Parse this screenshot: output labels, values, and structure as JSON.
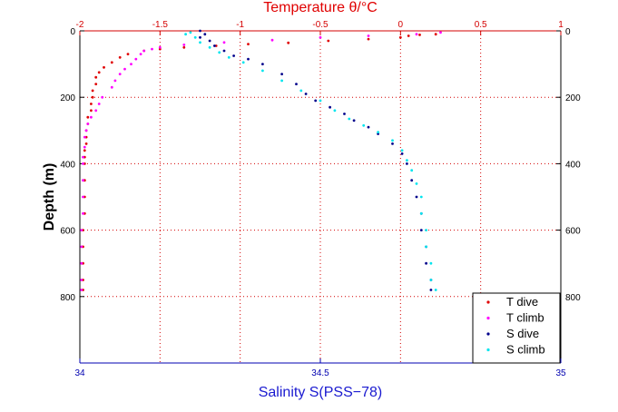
{
  "chart_data": {
    "type": "scatter",
    "title": "Temperature θ/°C",
    "xlabel": "Salinity S(PSS−78)",
    "ylabel": "Depth (m)",
    "x_top": {
      "label": "Temperature θ/°C",
      "lim": [
        -2,
        1
      ],
      "ticks": [
        "-2",
        "-1.5",
        "-1",
        "-0.5",
        "0",
        "0.5",
        "1"
      ],
      "tick_values": [
        -2,
        -1.5,
        -1,
        -0.5,
        0,
        0.5,
        1
      ]
    },
    "x_bottom": {
      "label": "Salinity S(PSS−78)",
      "lim": [
        34,
        35
      ],
      "ticks": [
        "34",
        "34.5",
        "35"
      ],
      "tick_values": [
        34,
        34.5,
        35
      ]
    },
    "y": {
      "label": "Depth (m)",
      "lim": [
        0,
        1000
      ],
      "reversed": true,
      "ticks": [
        "0",
        "200",
        "400",
        "600",
        "800"
      ],
      "tick_values": [
        0,
        200,
        400,
        600,
        800
      ]
    },
    "grid": true,
    "legend_position": "bottom-right",
    "series": [
      {
        "name": "T dive",
        "axis": "top",
        "color": "#e00000",
        "points": [
          [
            0.22,
            10
          ],
          [
            0.12,
            12
          ],
          [
            0.05,
            15
          ],
          [
            0.0,
            20
          ],
          [
            -0.2,
            25
          ],
          [
            -0.45,
            30
          ],
          [
            -0.7,
            36
          ],
          [
            -0.95,
            40
          ],
          [
            -1.15,
            45
          ],
          [
            -1.35,
            50
          ],
          [
            -1.5,
            55
          ],
          [
            -1.6,
            60
          ],
          [
            -1.7,
            70
          ],
          [
            -1.75,
            80
          ],
          [
            -1.8,
            95
          ],
          [
            -1.85,
            110
          ],
          [
            -1.88,
            125
          ],
          [
            -1.9,
            140
          ],
          [
            -1.9,
            160
          ],
          [
            -1.92,
            180
          ],
          [
            -1.92,
            200
          ],
          [
            -1.93,
            220
          ],
          [
            -1.93,
            240
          ],
          [
            -1.95,
            260
          ],
          [
            -1.95,
            280
          ],
          [
            -1.96,
            300
          ],
          [
            -1.96,
            320
          ],
          [
            -1.96,
            340
          ],
          [
            -1.97,
            360
          ],
          [
            -1.97,
            380
          ],
          [
            -1.97,
            400
          ],
          [
            -1.97,
            450
          ],
          [
            -1.97,
            500
          ],
          [
            -1.97,
            550
          ],
          [
            -1.98,
            600
          ],
          [
            -1.98,
            650
          ],
          [
            -1.98,
            700
          ],
          [
            -1.98,
            750
          ],
          [
            -1.98,
            780
          ]
        ]
      },
      {
        "name": "T climb",
        "axis": "top",
        "color": "#ff00ff",
        "points": [
          [
            0.25,
            5
          ],
          [
            0.1,
            10
          ],
          [
            -0.2,
            15
          ],
          [
            -0.5,
            20
          ],
          [
            -0.8,
            28
          ],
          [
            -1.1,
            35
          ],
          [
            -1.35,
            42
          ],
          [
            -1.5,
            50
          ],
          [
            -1.55,
            55
          ],
          [
            -1.6,
            60
          ],
          [
            -1.62,
            70
          ],
          [
            -1.65,
            85
          ],
          [
            -1.68,
            100
          ],
          [
            -1.72,
            115
          ],
          [
            -1.75,
            130
          ],
          [
            -1.78,
            150
          ],
          [
            -1.8,
            170
          ],
          [
            -1.86,
            200
          ],
          [
            -1.88,
            220
          ],
          [
            -1.9,
            240
          ],
          [
            -1.93,
            260
          ],
          [
            -1.95,
            280
          ],
          [
            -1.96,
            300
          ],
          [
            -1.97,
            320
          ],
          [
            -1.97,
            350
          ],
          [
            -1.98,
            380
          ],
          [
            -1.98,
            400
          ],
          [
            -1.98,
            450
          ],
          [
            -1.98,
            500
          ],
          [
            -1.98,
            550
          ],
          [
            -1.99,
            600
          ],
          [
            -1.99,
            650
          ],
          [
            -1.99,
            700
          ],
          [
            -1.99,
            750
          ],
          [
            -1.99,
            780
          ]
        ]
      },
      {
        "name": "S dive",
        "axis": "bottom",
        "color": "#00008b",
        "points": [
          [
            34.25,
            0
          ],
          [
            34.26,
            10
          ],
          [
            34.25,
            20
          ],
          [
            34.27,
            30
          ],
          [
            34.28,
            45
          ],
          [
            34.3,
            60
          ],
          [
            34.32,
            75
          ],
          [
            34.35,
            85
          ],
          [
            34.38,
            100
          ],
          [
            34.42,
            130
          ],
          [
            34.45,
            160
          ],
          [
            34.47,
            190
          ],
          [
            34.49,
            210
          ],
          [
            34.52,
            230
          ],
          [
            34.55,
            250
          ],
          [
            34.57,
            270
          ],
          [
            34.6,
            290
          ],
          [
            34.62,
            310
          ],
          [
            34.65,
            340
          ],
          [
            34.67,
            370
          ],
          [
            34.68,
            400
          ],
          [
            34.69,
            450
          ],
          [
            34.7,
            500
          ],
          [
            34.71,
            550
          ],
          [
            34.71,
            600
          ],
          [
            34.72,
            650
          ],
          [
            34.72,
            700
          ],
          [
            34.73,
            750
          ],
          [
            34.73,
            780
          ]
        ]
      },
      {
        "name": "S climb",
        "axis": "bottom",
        "color": "#00e5ee",
        "points": [
          [
            34.23,
            5
          ],
          [
            34.22,
            10
          ],
          [
            34.24,
            20
          ],
          [
            34.25,
            35
          ],
          [
            34.27,
            50
          ],
          [
            34.29,
            65
          ],
          [
            34.31,
            80
          ],
          [
            34.34,
            95
          ],
          [
            34.38,
            120
          ],
          [
            34.42,
            150
          ],
          [
            34.46,
            180
          ],
          [
            34.5,
            210
          ],
          [
            34.53,
            240
          ],
          [
            34.56,
            265
          ],
          [
            34.59,
            285
          ],
          [
            34.62,
            305
          ],
          [
            34.65,
            330
          ],
          [
            34.67,
            360
          ],
          [
            34.68,
            390
          ],
          [
            34.69,
            420
          ],
          [
            34.7,
            460
          ],
          [
            34.71,
            500
          ],
          [
            34.71,
            550
          ],
          [
            34.72,
            600
          ],
          [
            34.72,
            650
          ],
          [
            34.73,
            700
          ],
          [
            34.73,
            750
          ],
          [
            34.74,
            780
          ]
        ]
      }
    ]
  }
}
